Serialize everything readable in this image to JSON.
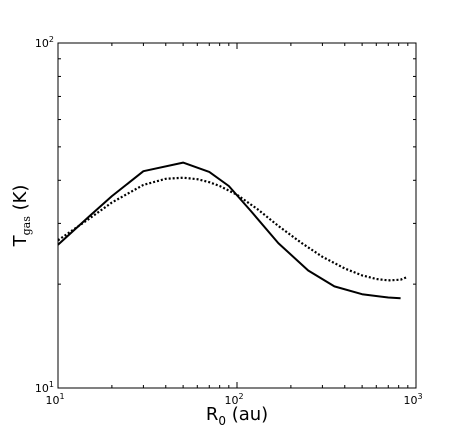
{
  "chart_data": {
    "type": "line",
    "title": "",
    "xlabel": {
      "main": "R",
      "sub": "0",
      "unit": " (au)"
    },
    "ylabel": {
      "main": "T",
      "sub": "gas",
      "unit": " (K)"
    },
    "xscale": "log",
    "yscale": "log",
    "xlim": [
      10,
      1000
    ],
    "ylim": [
      10,
      100
    ],
    "grid": false,
    "legend": "none",
    "x_ticks": [
      {
        "value": 10,
        "base": "10",
        "exp": "1"
      },
      {
        "value": 100,
        "base": "10",
        "exp": "2"
      },
      {
        "value": 1000,
        "base": "10",
        "exp": "3"
      }
    ],
    "y_ticks": [
      {
        "value": 10,
        "base": "10",
        "exp": "1"
      },
      {
        "value": 100,
        "base": "10",
        "exp": "2"
      }
    ],
    "series": [
      {
        "style": "solid",
        "color": "#000000",
        "x": [
          10,
          15,
          20,
          30,
          50,
          70,
          90,
          120,
          170,
          250,
          350,
          500,
          700,
          820
        ],
        "y": [
          26.0,
          31.5,
          36.0,
          42.5,
          45.0,
          42.3,
          38.5,
          32.5,
          26.3,
          21.9,
          19.7,
          18.7,
          18.3,
          18.2
        ]
      },
      {
        "style": "dotted",
        "color": "#000000",
        "x": [
          10,
          15,
          20,
          30,
          40,
          50,
          60,
          70,
          80,
          100,
          130,
          170,
          230,
          300,
          400,
          500,
          600,
          700,
          820,
          900
        ],
        "y": [
          26.8,
          31.0,
          34.5,
          38.8,
          40.4,
          40.7,
          40.3,
          39.5,
          38.5,
          36.3,
          33.0,
          29.5,
          26.3,
          24.0,
          22.2,
          21.2,
          20.7,
          20.5,
          20.6,
          21.0
        ]
      }
    ]
  }
}
